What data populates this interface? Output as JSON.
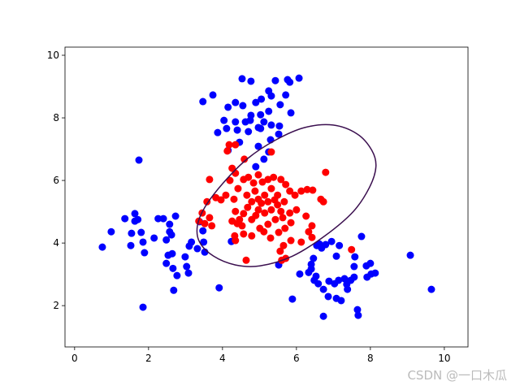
{
  "chart_data": {
    "type": "scatter",
    "series": [
      {
        "color": "#0000ff",
        "x": [
          4.53,
          4.77,
          5.43,
          5.76,
          6.07,
          5.82,
          5.25,
          4.9,
          5.05,
          5.32,
          5.71,
          3.47,
          3.74,
          4.15,
          4.35,
          4.55,
          4.77,
          5.03,
          5.25,
          5.56,
          5.85,
          4.04,
          4.35,
          4.62,
          4.75,
          4.97,
          5.12,
          5.32,
          5.54,
          5.52,
          5.3,
          5.03,
          3.87,
          4.11,
          4.4,
          4.7,
          5.25,
          4.97,
          5.12,
          4.9,
          4.15,
          4.46,
          0.75,
          0.99,
          1.36,
          1.54,
          1.63,
          1.63,
          1.71,
          1.8,
          1.85,
          1.89,
          1.52,
          1.74,
          1.85,
          2.15,
          2.26,
          2.4,
          2.48,
          2.57,
          2.57,
          2.62,
          2.73,
          2.48,
          2.53,
          2.64,
          2.66,
          2.77,
          2.68,
          2.99,
          3.03,
          3.1,
          3.08,
          3.32,
          3.16,
          3.49,
          3.38,
          3.47,
          3.52,
          3.91,
          4.24,
          5.52,
          6.09,
          6.33,
          6.4,
          6.55,
          6.62,
          6.68,
          6.79,
          6.95,
          7.08,
          7.16,
          6.46,
          6.4,
          6.48,
          6.59,
          6.53,
          6.73,
          6.73,
          6.88,
          6.86,
          7.03,
          7.14,
          7.21,
          7.3,
          7.36,
          7.47,
          7.56,
          7.56,
          7.58,
          7.76,
          7.89,
          8.0,
          8.02,
          8.13,
          7.91,
          7.65,
          7.67,
          9.08,
          9.65,
          5.89,
          7.08,
          7.38
        ],
        "values": [
          9.25,
          9.17,
          9.19,
          9.22,
          9.27,
          9.14,
          8.86,
          8.49,
          8.6,
          8.7,
          8.73,
          8.52,
          8.73,
          8.34,
          8.49,
          8.39,
          8.08,
          8.1,
          8.21,
          8.42,
          8.16,
          7.92,
          7.87,
          7.87,
          7.92,
          7.69,
          7.87,
          7.77,
          7.74,
          7.48,
          7.3,
          7.66,
          7.53,
          7.66,
          7.61,
          7.56,
          6.91,
          7.09,
          6.68,
          6.44,
          6.96,
          7.22,
          3.87,
          4.36,
          4.78,
          4.31,
          4.94,
          4.7,
          4.75,
          4.34,
          4.03,
          3.69,
          3.92,
          6.65,
          1.95,
          4.16,
          4.78,
          4.78,
          4.1,
          4.36,
          4.6,
          4.26,
          4.86,
          3.35,
          3.61,
          3.66,
          3.19,
          2.96,
          2.49,
          3.56,
          3.25,
          3.9,
          3.04,
          3.82,
          4.03,
          4.03,
          4.68,
          4.39,
          3.71,
          2.57,
          4.05,
          3.3,
          3.01,
          3.06,
          3.32,
          3.92,
          3.97,
          3.84,
          3.95,
          4.05,
          3.58,
          3.92,
          3.51,
          3.17,
          2.81,
          2.7,
          2.94,
          2.52,
          1.66,
          2.78,
          2.29,
          2.7,
          2.81,
          2.16,
          2.86,
          2.68,
          2.81,
          2.91,
          3.25,
          3.56,
          4.21,
          3.27,
          3.35,
          3.01,
          3.04,
          2.91,
          1.87,
          1.69,
          3.61,
          2.52,
          2.21,
          2.23,
          2.52
        ]
      },
      {
        "color": "#ff0000",
        "x": [
          3.65,
          3.58,
          3.45,
          3.36,
          3.52,
          3.65,
          3.71,
          3.96,
          4.09,
          3.82,
          4.2,
          4.35,
          4.26,
          4.18,
          4.35,
          4.13,
          4.59,
          5.32,
          4.31,
          4.42,
          4.57,
          4.7,
          4.84,
          4.97,
          5.08,
          5.23,
          5.38,
          5.58,
          5.71,
          5.82,
          5.96,
          6.13,
          6.29,
          6.44,
          6.66,
          6.73,
          6.79,
          6.26,
          6.42,
          6.33,
          6.42,
          6.13,
          5.85,
          5.65,
          5.56,
          5.6,
          5.71,
          4.64,
          4.35,
          4.57,
          4.79,
          5.01,
          5.23,
          5.43,
          5.63,
          5.82,
          6.0,
          5.85,
          5.69,
          5.52,
          5.3,
          5.12,
          4.79,
          4.57,
          4.35,
          4.4,
          4.53,
          4.97,
          5.14,
          5.32,
          5.49,
          5.67,
          5.49,
          5.32,
          5.14,
          4.97,
          4.79,
          4.66,
          4.88,
          5.05,
          5.23,
          5.41,
          5.58,
          4.9,
          4.68,
          4.46,
          4.26,
          7.49,
          4.33
        ],
        "values": [
          6.03,
          5.32,
          4.96,
          4.7,
          4.62,
          4.81,
          4.55,
          5.38,
          5.53,
          5.45,
          6.0,
          6.23,
          6.39,
          7.14,
          7.14,
          6.94,
          6.68,
          6.91,
          5.4,
          5.74,
          6.03,
          6.1,
          5.92,
          6.18,
          5.95,
          6.03,
          6.1,
          6.03,
          5.87,
          5.66,
          5.53,
          5.66,
          5.71,
          5.69,
          5.4,
          5.32,
          6.26,
          4.86,
          4.55,
          4.36,
          4.18,
          4.03,
          4.08,
          3.92,
          3.74,
          3.45,
          3.51,
          3.45,
          4.08,
          4.29,
          4.23,
          4.47,
          4.6,
          4.75,
          4.81,
          4.96,
          5.06,
          4.65,
          4.47,
          4.34,
          4.16,
          4.36,
          4.75,
          4.94,
          5.01,
          4.62,
          4.55,
          5.06,
          4.96,
          5.06,
          5.22,
          5.32,
          5.53,
          5.74,
          5.53,
          5.4,
          5.32,
          5.53,
          5.66,
          5.27,
          5.32,
          5.38,
          5.01,
          4.88,
          5.14,
          4.75,
          4.7,
          3.79,
          4.23
        ]
      }
    ],
    "contour": {
      "color": "#3b0f4f",
      "x": [
        6.99,
        7.65,
        8.04,
        8.15,
        7.98,
        7.54,
        6.77,
        5.89,
        5.01,
        4.35,
        3.76,
        3.38,
        3.32,
        3.52,
        4.02,
        4.68,
        5.45,
        6.22
      ],
      "values": [
        7.77,
        7.48,
        6.96,
        6.44,
        5.79,
        5.01,
        4.23,
        3.58,
        3.27,
        3.3,
        3.58,
        4.03,
        4.55,
        5.14,
        5.92,
        6.7,
        7.3,
        7.69
      ]
    },
    "xlim": [
      -0.26,
      10.64
    ],
    "ylim": [
      0.68,
      10.26
    ],
    "xticks": [
      0,
      2,
      4,
      6,
      8,
      10
    ],
    "yticks": [
      2,
      4,
      6,
      8,
      10
    ]
  },
  "watermark": "CSDN @一口木瓜"
}
